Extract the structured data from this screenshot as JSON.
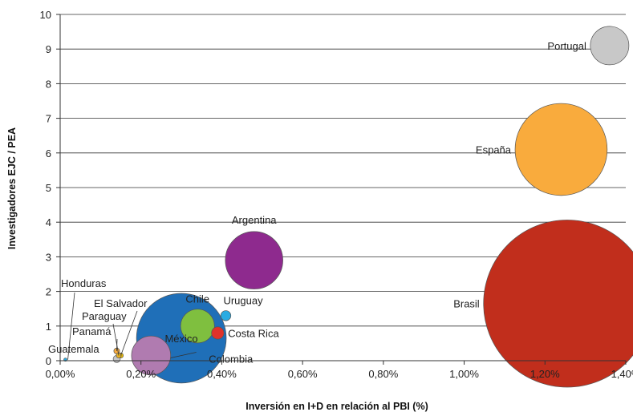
{
  "chart_data": {
    "type": "bubble",
    "xlabel": "Inversión en I+D en relación al PBI (%)",
    "ylabel": "Investigadores  EJC / PEA",
    "xlim": [
      0,
      1.4
    ],
    "ylim": [
      0,
      10
    ],
    "x_ticks": [
      "0,00%",
      "0,20%",
      "0,40%",
      "0,60%",
      "0,80%",
      "1,00%",
      "1,20%",
      "1,40%"
    ],
    "x_tick_values": [
      0,
      0.2,
      0.4,
      0.6,
      0.8,
      1.0,
      1.2,
      1.4
    ],
    "y_ticks": [
      "0",
      "1",
      "2",
      "3",
      "4",
      "5",
      "6",
      "7",
      "8",
      "9",
      "10"
    ],
    "y_tick_values": [
      0,
      1,
      2,
      3,
      4,
      5,
      6,
      7,
      8,
      9,
      10
    ],
    "grid": "horizontal",
    "points": [
      {
        "name": "Portugal",
        "x": 1.36,
        "y": 9.1,
        "size": 0.175,
        "color": "#c8c8c8"
      },
      {
        "name": "España",
        "x": 1.24,
        "y": 6.1,
        "size": 1.0,
        "color": "#f9ab3d"
      },
      {
        "name": "Brasil",
        "x": 1.255,
        "y": 1.65,
        "size": 3.3,
        "color": "#c12e1c"
      },
      {
        "name": "Argentina",
        "x": 0.48,
        "y": 2.9,
        "size": 0.39,
        "color": "#8e2a8e"
      },
      {
        "name": "México",
        "x": 0.3,
        "y": 0.65,
        "size": 0.95,
        "color": "#1f6fb8"
      },
      {
        "name": "Chile",
        "x": 0.34,
        "y": 1.0,
        "size": 0.135,
        "color": "#7fbf3f"
      },
      {
        "name": "Uruguay",
        "x": 0.41,
        "y": 1.3,
        "size": 0.012,
        "color": "#29abe2"
      },
      {
        "name": "Costa Rica",
        "x": 0.39,
        "y": 0.8,
        "size": 0.018,
        "color": "#e0322a"
      },
      {
        "name": "Colombia",
        "x": 0.225,
        "y": 0.15,
        "size": 0.18,
        "color": "#b07bb0"
      },
      {
        "name": "El Salvador",
        "x": 0.15,
        "y": 0.15,
        "size": 0.003,
        "color": "#f2c200"
      },
      {
        "name": "Paraguay",
        "x": 0.145,
        "y": 0.15,
        "size": 0.003,
        "color": "#e8b020"
      },
      {
        "name": "Panamá",
        "x": 0.14,
        "y": 0.28,
        "size": 0.004,
        "color": "#f9ab3d"
      },
      {
        "name": "Guatemala",
        "x": 0.14,
        "y": 0.05,
        "size": 0.006,
        "color": "#c8c8c8"
      },
      {
        "name": "Honduras",
        "x": 0.013,
        "y": 0.03,
        "size": 0.0008,
        "color": "#29abe2"
      }
    ]
  }
}
